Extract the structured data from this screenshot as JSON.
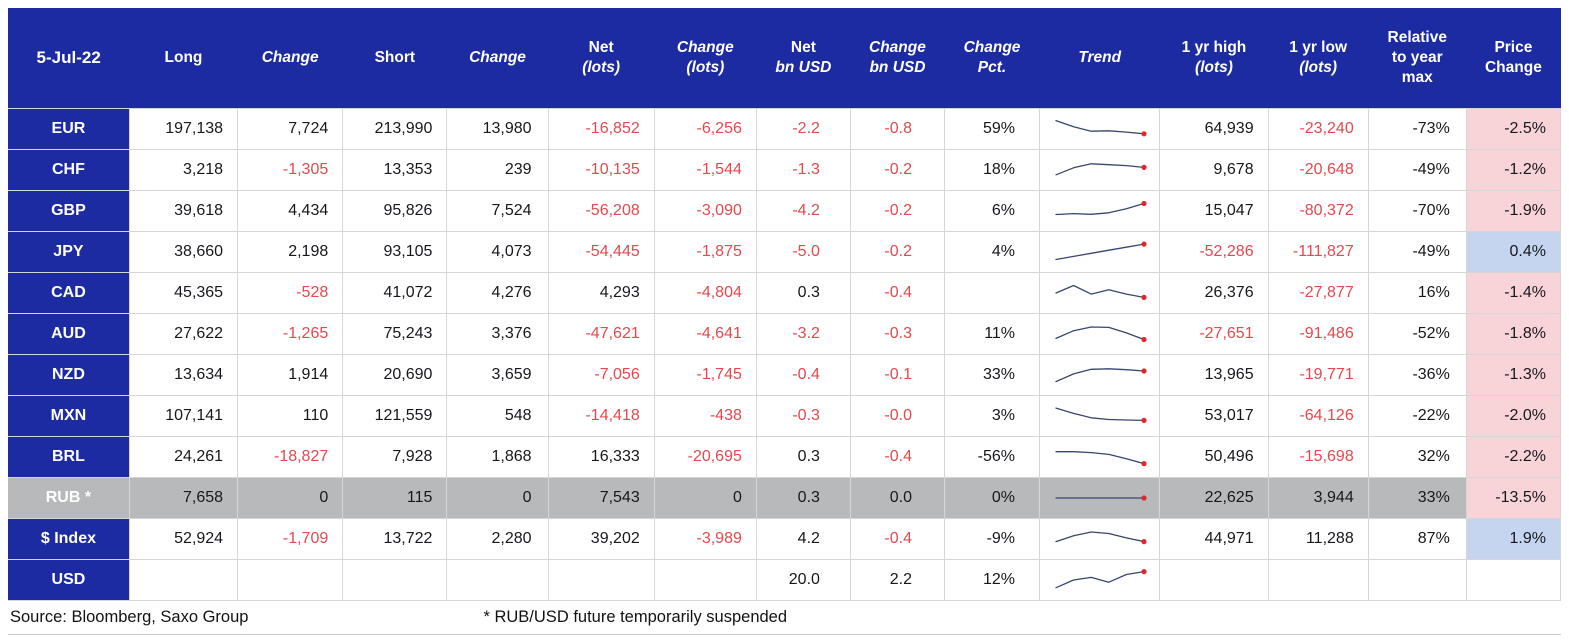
{
  "colors": {
    "page_bg": "#ffffff",
    "header_bg": "#1c2ba1",
    "label_bg": "#1c2ba1",
    "header_text": "#ffffff",
    "body_text": "#17171c",
    "negative_text": "#e5484d",
    "highlight_row_bg": "#b8b9bb",
    "price_down_bg": "#f8d4d9",
    "price_up_bg": "#c5d5f0",
    "grid_line": "#d6d6d6",
    "spark_line": "#37466f",
    "spark_dot": "#e0262e"
  },
  "chart_data": {
    "type": "table",
    "title": "FX futures positioning - 5-Jul-22",
    "columns": [
      {
        "key": "label",
        "lines": [
          {
            "t": "5-Jul-22",
            "i": false
          }
        ]
      },
      {
        "key": "long",
        "lines": [
          {
            "t": "Long",
            "i": false
          }
        ]
      },
      {
        "key": "long_change",
        "lines": [
          {
            "t": "Change",
            "i": true
          }
        ]
      },
      {
        "key": "short",
        "lines": [
          {
            "t": "Short",
            "i": false
          }
        ]
      },
      {
        "key": "short_change",
        "lines": [
          {
            "t": "Change",
            "i": true
          }
        ]
      },
      {
        "key": "net_lots",
        "lines": [
          {
            "t": "Net",
            "i": false
          },
          {
            "t": "(lots)",
            "i": true
          }
        ]
      },
      {
        "key": "change_lots",
        "lines": [
          {
            "t": "Change",
            "i": true
          },
          {
            "t": "(lots)",
            "i": true
          }
        ]
      },
      {
        "key": "net_bn",
        "lines": [
          {
            "t": "Net",
            "i": false
          },
          {
            "t": "bn USD",
            "i": true
          }
        ]
      },
      {
        "key": "change_bn",
        "lines": [
          {
            "t": "Change",
            "i": true
          },
          {
            "t": "bn USD",
            "i": true
          }
        ]
      },
      {
        "key": "change_pct",
        "lines": [
          {
            "t": "Change",
            "i": true
          },
          {
            "t": "Pct.",
            "i": true
          }
        ]
      },
      {
        "key": "trend",
        "lines": [
          {
            "t": "Trend",
            "i": true
          }
        ]
      },
      {
        "key": "yr_high",
        "lines": [
          {
            "t": "1 yr high",
            "i": false
          },
          {
            "t": "(lots)",
            "i": true
          }
        ]
      },
      {
        "key": "yr_low",
        "lines": [
          {
            "t": "1 yr low",
            "i": false
          },
          {
            "t": "(lots)",
            "i": true
          }
        ]
      },
      {
        "key": "relative",
        "lines": [
          {
            "t": "Relative",
            "i": false
          },
          {
            "t": "to year",
            "i": false
          },
          {
            "t": "max",
            "i": false
          }
        ]
      },
      {
        "key": "price_change",
        "lines": [
          {
            "t": "Price",
            "i": false
          },
          {
            "t": "Change",
            "i": false
          }
        ]
      }
    ],
    "red_negative_columns": [
      "long",
      "long_change",
      "short",
      "short_change",
      "net_lots",
      "change_lots",
      "net_bn",
      "change_bn",
      "yr_high",
      "yr_low"
    ],
    "rows": [
      {
        "id": "eur",
        "label": "EUR",
        "highlight": false,
        "price_bg": "down",
        "values": {
          "long": "197,138",
          "long_change": "7,724",
          "short": "213,990",
          "short_change": "13,980",
          "net_lots": "-16,852",
          "change_lots": "-6,256",
          "net_bn": "-2.2",
          "change_bn": "-0.8",
          "change_pct": "59%",
          "yr_high": "64,939",
          "yr_low": "-23,240",
          "relative": "-73%",
          "price_change": "-2.5%"
        },
        "spark": [
          12,
          40,
          60,
          58,
          64,
          72
        ]
      },
      {
        "id": "chf",
        "label": "CHF",
        "highlight": false,
        "price_bg": "down",
        "values": {
          "long": "3,218",
          "long_change": "-1,305",
          "short": "13,353",
          "short_change": "239",
          "net_lots": "-10,135",
          "change_lots": "-1,544",
          "net_bn": "-1.3",
          "change_bn": "-0.2",
          "change_pct": "18%",
          "yr_high": "9,678",
          "yr_low": "-20,648",
          "relative": "-49%",
          "price_change": "-1.2%"
        },
        "spark": [
          72,
          40,
          22,
          26,
          30,
          38
        ]
      },
      {
        "id": "gbp",
        "label": "GBP",
        "highlight": false,
        "price_bg": "down",
        "values": {
          "long": "39,618",
          "long_change": "4,434",
          "short": "95,826",
          "short_change": "7,524",
          "net_lots": "-56,208",
          "change_lots": "-3,090",
          "net_bn": "-4.2",
          "change_bn": "-0.2",
          "change_pct": "6%",
          "yr_high": "15,047",
          "yr_low": "-80,372",
          "relative": "-70%",
          "price_change": "-1.9%"
        },
        "spark": [
          66,
          62,
          65,
          58,
          40,
          16
        ]
      },
      {
        "id": "jpy",
        "label": "JPY",
        "highlight": false,
        "price_bg": "up",
        "values": {
          "long": "38,660",
          "long_change": "2,198",
          "short": "93,105",
          "short_change": "4,073",
          "net_lots": "-54,445",
          "change_lots": "-1,875",
          "net_bn": "-5.0",
          "change_bn": "-0.2",
          "change_pct": "4%",
          "yr_high": "-52,286",
          "yr_low": "-111,827",
          "relative": "-49%",
          "price_change": "0.4%"
        },
        "spark": [
          84,
          70,
          56,
          42,
          28,
          14
        ]
      },
      {
        "id": "cad",
        "label": "CAD",
        "highlight": false,
        "price_bg": "down",
        "values": {
          "long": "45,365",
          "long_change": "-528",
          "short": "41,072",
          "short_change": "4,276",
          "net_lots": "4,293",
          "change_lots": "-4,804",
          "net_bn": "0.3",
          "change_bn": "-0.4",
          "change_pct": "",
          "yr_high": "26,376",
          "yr_low": "-27,877",
          "relative": "16%",
          "price_change": "-1.4%"
        },
        "spark": [
          50,
          16,
          55,
          35,
          55,
          70
        ]
      },
      {
        "id": "aud",
        "label": "AUD",
        "highlight": false,
        "price_bg": "down",
        "values": {
          "long": "27,622",
          "long_change": "-1,265",
          "short": "75,243",
          "short_change": "3,376",
          "net_lots": "-47,621",
          "change_lots": "-4,641",
          "net_bn": "-3.2",
          "change_bn": "-0.3",
          "change_pct": "11%",
          "yr_high": "-27,651",
          "yr_low": "-91,486",
          "relative": "-52%",
          "price_change": "-1.8%"
        },
        "spark": [
          70,
          35,
          18,
          20,
          45,
          75
        ]
      },
      {
        "id": "nzd",
        "label": "NZD",
        "highlight": false,
        "price_bg": "down",
        "values": {
          "long": "13,634",
          "long_change": "1,914",
          "short": "20,690",
          "short_change": "3,659",
          "net_lots": "-7,056",
          "change_lots": "-1,745",
          "net_bn": "-0.4",
          "change_bn": "-0.1",
          "change_pct": "33%",
          "yr_high": "13,965",
          "yr_low": "-19,771",
          "relative": "-36%",
          "price_change": "-1.3%"
        },
        "spark": [
          80,
          45,
          24,
          22,
          26,
          32
        ]
      },
      {
        "id": "mxn",
        "label": "MXN",
        "highlight": false,
        "price_bg": "down",
        "values": {
          "long": "107,141",
          "long_change": "110",
          "short": "121,559",
          "short_change": "548",
          "net_lots": "-14,418",
          "change_lots": "-438",
          "net_bn": "-0.3",
          "change_bn": "-0.0",
          "change_pct": "3%",
          "yr_high": "53,017",
          "yr_low": "-64,126",
          "relative": "-22%",
          "price_change": "-2.0%"
        },
        "spark": [
          14,
          38,
          58,
          66,
          68,
          70
        ]
      },
      {
        "id": "brl",
        "label": "BRL",
        "highlight": false,
        "price_bg": "down",
        "values": {
          "long": "24,261",
          "long_change": "-18,827",
          "short": "7,928",
          "short_change": "1,868",
          "net_lots": "16,333",
          "change_lots": "-20,695",
          "net_bn": "0.3",
          "change_bn": "-0.4",
          "change_pct": "-56%",
          "yr_high": "50,496",
          "yr_low": "-15,698",
          "relative": "32%",
          "price_change": "-2.2%"
        },
        "spark": [
          26,
          26,
          30,
          38,
          58,
          80
        ]
      },
      {
        "id": "rub",
        "label": "RUB *",
        "highlight": true,
        "price_bg": "down",
        "values": {
          "long": "7,658",
          "long_change": "0",
          "short": "115",
          "short_change": "0",
          "net_lots": "7,543",
          "change_lots": "0",
          "net_bn": "0.3",
          "change_bn": "0.0",
          "change_pct": "0%",
          "yr_high": "22,625",
          "yr_low": "3,944",
          "relative": "33%",
          "price_change": "-13.5%"
        },
        "spark": [
          50,
          50,
          50,
          50,
          50,
          50
        ]
      },
      {
        "id": "dollar_index",
        "label": "$ Index",
        "highlight": false,
        "price_bg": "up",
        "values": {
          "long": "52,924",
          "long_change": "-1,709",
          "short": "13,722",
          "short_change": "2,280",
          "net_lots": "39,202",
          "change_lots": "-3,989",
          "net_bn": "4.2",
          "change_bn": "-0.4",
          "change_pct": "-9%",
          "yr_high": "44,971",
          "yr_low": "11,288",
          "relative": "87%",
          "price_change": "1.9%"
        },
        "spark": [
          62,
          35,
          18,
          25,
          45,
          62
        ]
      },
      {
        "id": "usd",
        "label": "USD",
        "highlight": false,
        "price_bg": "",
        "values": {
          "long": "",
          "long_change": "",
          "short": "",
          "short_change": "",
          "net_lots": "",
          "change_lots": "",
          "net_bn": "20.0",
          "change_bn": "2.2",
          "change_pct": "12%",
          "yr_high": "",
          "yr_low": "",
          "relative": "",
          "price_change": ""
        },
        "spark": [
          85,
          50,
          38,
          60,
          25,
          12
        ]
      }
    ]
  },
  "footer": {
    "source": "Source: Bloomberg, Saxo Group",
    "note": "* RUB/USD future temporarily suspended"
  }
}
